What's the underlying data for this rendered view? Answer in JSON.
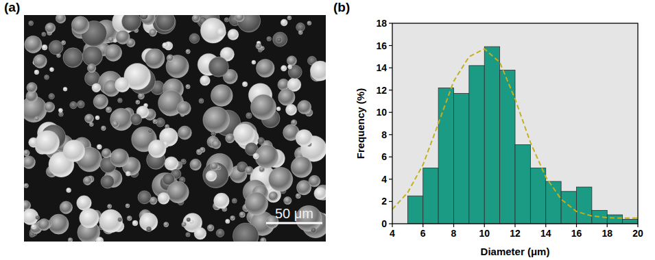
{
  "image": {
    "label": "(a)",
    "scale_bar_label": "50 μm"
  },
  "chart_data": {
    "type": "histogram",
    "title": "(b)",
    "x_label": "Diameter (μm)",
    "y_label": "Frequency (%)",
    "bins": [
      5,
      6,
      7,
      8,
      9,
      10,
      11,
      12,
      13,
      14,
      15,
      16,
      17,
      18,
      19,
      20
    ],
    "values": [
      2.5,
      5.0,
      12.2,
      11.7,
      14.2,
      15.9,
      13.8,
      7.1,
      5.0,
      3.8,
      2.9,
      3.3,
      1.2,
      0.8,
      0.4
    ],
    "color": "#1b9a84",
    "series": [
      {
        "type": "line",
        "color": "#c4b01c",
        "line_style": "dashed",
        "x": [
          4,
          5,
          6,
          7,
          8,
          9,
          10,
          11,
          12,
          13,
          14,
          15,
          16,
          17,
          18,
          19,
          20
        ],
        "values": [
          1.3,
          2.8,
          5.3,
          9.0,
          12.8,
          15.0,
          15.7,
          14.5,
          11.2,
          7.3,
          4.2,
          2.2,
          1.1,
          0.7,
          0.55,
          0.5,
          0.5
        ]
      }
    ],
    "xlim": [
      4,
      20
    ],
    "ylim": [
      0,
      18
    ],
    "xticks": [
      4,
      6,
      8,
      10,
      12,
      14,
      16,
      18,
      20
    ],
    "yticks": [
      0,
      2,
      4,
      6,
      8,
      10,
      12,
      14,
      16,
      18
    ]
  }
}
